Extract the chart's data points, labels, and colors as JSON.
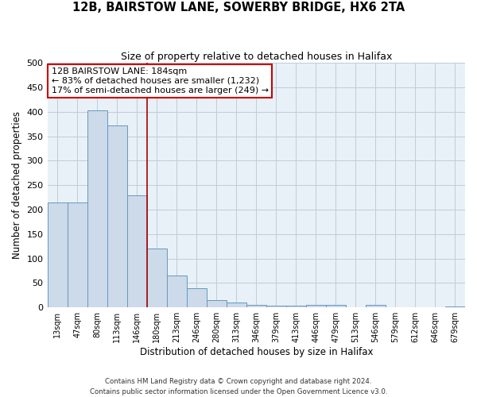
{
  "title": "12B, BAIRSTOW LANE, SOWERBY BRIDGE, HX6 2TA",
  "subtitle": "Size of property relative to detached houses in Halifax",
  "xlabel": "Distribution of detached houses by size in Halifax",
  "ylabel": "Number of detached properties",
  "bar_color": "#ccdaea",
  "bar_edge_color": "#6699bb",
  "bg_color": "#e8f0f8",
  "grid_color": "#c0ccd8",
  "categories": [
    "13sqm",
    "47sqm",
    "80sqm",
    "113sqm",
    "146sqm",
    "180sqm",
    "213sqm",
    "246sqm",
    "280sqm",
    "313sqm",
    "346sqm",
    "379sqm",
    "413sqm",
    "446sqm",
    "479sqm",
    "513sqm",
    "546sqm",
    "579sqm",
    "612sqm",
    "646sqm",
    "679sqm"
  ],
  "values": [
    215,
    215,
    403,
    372,
    230,
    120,
    65,
    40,
    15,
    10,
    5,
    3,
    3,
    5,
    5,
    0,
    5,
    0,
    0,
    0,
    2
  ],
  "ylim": [
    0,
    500
  ],
  "yticks": [
    0,
    50,
    100,
    150,
    200,
    250,
    300,
    350,
    400,
    450,
    500
  ],
  "vline_color": "#aa0000",
  "annotation_title": "12B BAIRSTOW LANE: 184sqm",
  "annotation_line1": "← 83% of detached houses are smaller (1,232)",
  "annotation_line2": "17% of semi-detached houses are larger (249) →",
  "annotation_box_color": "#ffffff",
  "annotation_box_edge": "#cc0000",
  "footer_line1": "Contains HM Land Registry data © Crown copyright and database right 2024.",
  "footer_line2": "Contains public sector information licensed under the Open Government Licence v3.0."
}
